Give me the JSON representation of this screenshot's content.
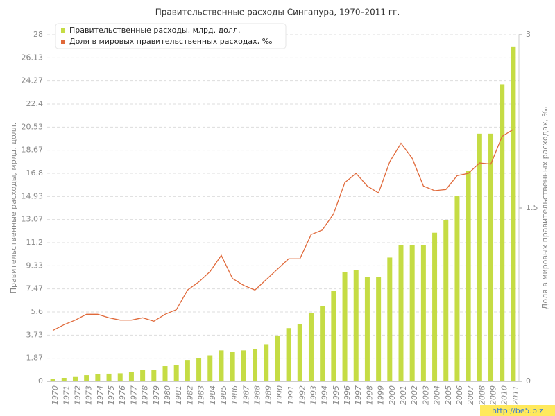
{
  "chart_data": {
    "type": "bar_line",
    "title": "Правительственные расходы Сингапура, 1970–2011 гг.",
    "ylabel": "Правительственные расходы, мрлд. долл.",
    "y2label": "Доля в мировых правительственных расходах, ‰",
    "watermark": "http://be5.biz",
    "categories": [
      "1970",
      "1971",
      "1972",
      "1973",
      "1974",
      "1975",
      "1976",
      "1977",
      "1978",
      "1979",
      "1980",
      "1981",
      "1982",
      "1983",
      "1984",
      "1985",
      "1986",
      "1987",
      "1988",
      "1989",
      "1990",
      "1991",
      "1992",
      "1993",
      "1994",
      "1995",
      "1996",
      "1997",
      "1998",
      "1999",
      "2000",
      "2001",
      "2002",
      "2003",
      "2004",
      "2005",
      "2006",
      "2007",
      "2008",
      "2009",
      "2010",
      "2011"
    ],
    "series": [
      {
        "name": "Правительственные расходы, млрд. долл.",
        "type": "bar",
        "color": "#c5dc44",
        "values": [
          0.22,
          0.28,
          0.35,
          0.5,
          0.56,
          0.62,
          0.65,
          0.73,
          0.9,
          0.95,
          1.23,
          1.33,
          1.73,
          1.9,
          2.1,
          2.5,
          2.4,
          2.5,
          2.6,
          3.0,
          3.7,
          4.3,
          4.6,
          5.5,
          6.05,
          7.3,
          8.8,
          9.0,
          8.4,
          8.4,
          10.0,
          11.0,
          11.0,
          11.0,
          12.0,
          13.0,
          15.0,
          17.0,
          20.0,
          20.0,
          24.0,
          27.0
        ]
      },
      {
        "name": "Доля в мировых правительственных расходах, ‰",
        "type": "line",
        "axis": "y2",
        "color": "#e0693a",
        "values": [
          0.44,
          0.49,
          0.53,
          0.58,
          0.58,
          0.55,
          0.53,
          0.53,
          0.55,
          0.52,
          0.58,
          0.62,
          0.79,
          0.86,
          0.95,
          1.09,
          0.89,
          0.83,
          0.79,
          0.88,
          0.97,
          1.06,
          1.06,
          1.27,
          1.31,
          1.45,
          1.72,
          1.8,
          1.69,
          1.63,
          1.9,
          2.06,
          1.93,
          1.69,
          1.65,
          1.66,
          1.78,
          1.8,
          1.89,
          1.88,
          2.12,
          2.18
        ]
      }
    ],
    "ylim": [
      0,
      28
    ],
    "yticks": [
      0,
      1.87,
      3.73,
      5.6,
      7.47,
      9.33,
      11.2,
      13.07,
      14.93,
      16.8,
      18.67,
      20.53,
      22.4,
      24.27,
      26.13,
      28
    ],
    "y2lim": [
      0,
      3
    ],
    "y2ticks": [
      0,
      1.5,
      3
    ],
    "grid": true,
    "legend": "top-left"
  }
}
